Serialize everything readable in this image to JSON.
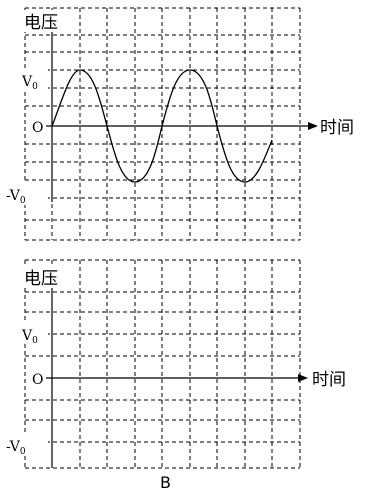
{
  "panels": [
    {
      "y_axis_label": "电压",
      "x_axis_label": "时间",
      "origin_label": "O",
      "pos_label": "V",
      "neg_label": "-V",
      "subscript": "0",
      "has_wave": true
    },
    {
      "y_axis_label": "电压",
      "x_axis_label": "时间",
      "origin_label": "O",
      "pos_label": "V",
      "neg_label": "-V",
      "subscript": "0",
      "has_wave": false
    }
  ],
  "caption": "B"
}
